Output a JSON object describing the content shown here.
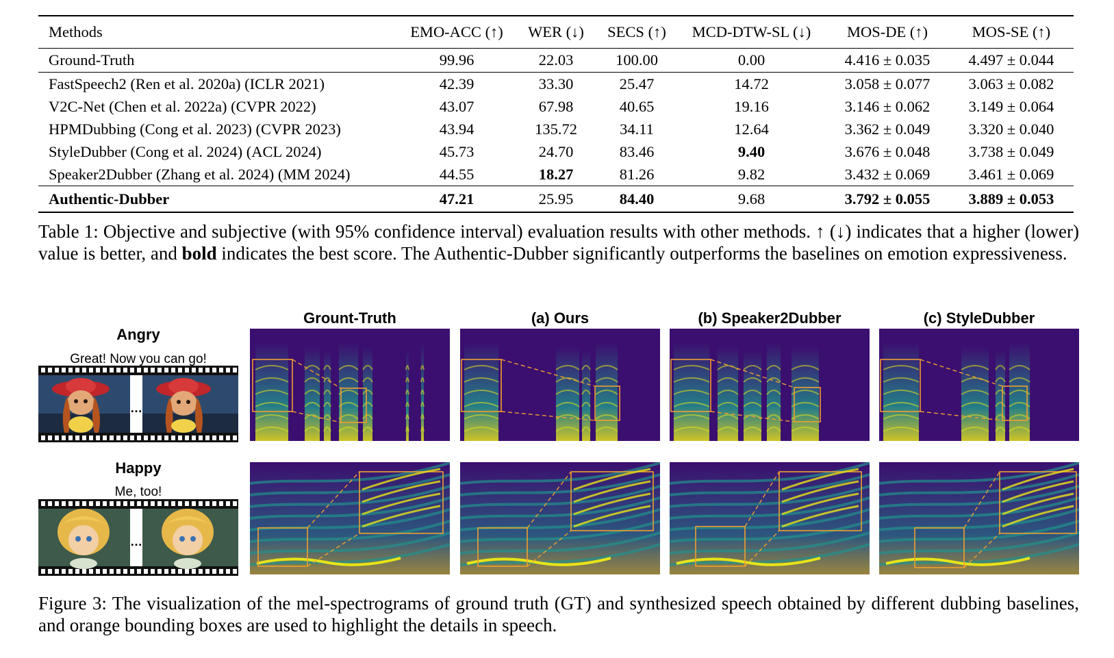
{
  "table": {
    "headers": [
      "Methods",
      "EMO-ACC (↑)",
      "WER (↓)",
      "SECS (↑)",
      "MCD-DTW-SL (↓)",
      "MOS-DE (↑)",
      "MOS-SE (↑)"
    ],
    "ground_truth": [
      "Ground-Truth",
      "99.96",
      "22.03",
      "100.00",
      "0.00",
      "4.416 ± 0.035",
      "4.497 ± 0.044"
    ],
    "baselines": [
      [
        "FastSpeech2 (Ren et al. 2020a) (ICLR 2021)",
        "42.39",
        "33.30",
        "25.47",
        "14.72",
        "3.058 ± 0.077",
        "3.063 ± 0.082"
      ],
      [
        "V2C-Net (Chen et al. 2022a) (CVPR 2022)",
        "43.07",
        "67.98",
        "40.65",
        "19.16",
        "3.146 ± 0.062",
        "3.149 ± 0.064"
      ],
      [
        "HPMDubbing (Cong et al. 2023) (CVPR 2023)",
        "43.94",
        "135.72",
        "34.11",
        "12.64",
        "3.362 ± 0.049",
        "3.320 ± 0.040"
      ],
      [
        "StyleDubber (Cong et al. 2024) (ACL 2024)",
        "45.73",
        "24.70",
        "83.46",
        "9.40",
        "3.676 ± 0.048",
        "3.738 ± 0.049"
      ],
      [
        "Speaker2Dubber (Zhang et al. 2024) (MM 2024)",
        "44.55",
        "18.27",
        "81.26",
        "9.82",
        "3.432 ± 0.069",
        "3.461 ± 0.069"
      ]
    ],
    "ours": [
      "Authentic-Dubber",
      "47.21",
      "25.95",
      "84.40",
      "9.68",
      "3.792 ± 0.055",
      "3.889 ± 0.053"
    ]
  },
  "table_caption": {
    "p1": "Table 1: Objective and subjective (with 95% confidence interval) evaluation results with other methods. ↑ (↓) indicates that a higher (lower) value is better, and ",
    "bold": "bold",
    "p2": " indicates the best score. The Authentic-Dubber significantly outperforms the baselines on emotion expressiveness."
  },
  "figure": {
    "column_titles": [
      "Grount-Truth",
      "(a) Ours",
      "(b) Speaker2Dubber",
      "(c) StyleDubber"
    ],
    "rows": [
      {
        "emotion": "Angry",
        "utterance": "Great! Now you can go!"
      },
      {
        "emotion": "Happy",
        "utterance": "Me, too!"
      }
    ],
    "ellipsis": "…",
    "colors": {
      "spectrogram_bg": "#3b0f6f",
      "spectrogram_high": "#e7e419",
      "spectrogram_mid": "#21918c",
      "box": "#f0a030"
    }
  },
  "figure_caption": "Figure 3: The visualization of the mel-spectrograms of ground truth (GT) and synthesized speech obtained by different dubbing baselines, and orange bounding boxes are used to highlight the details in speech."
}
